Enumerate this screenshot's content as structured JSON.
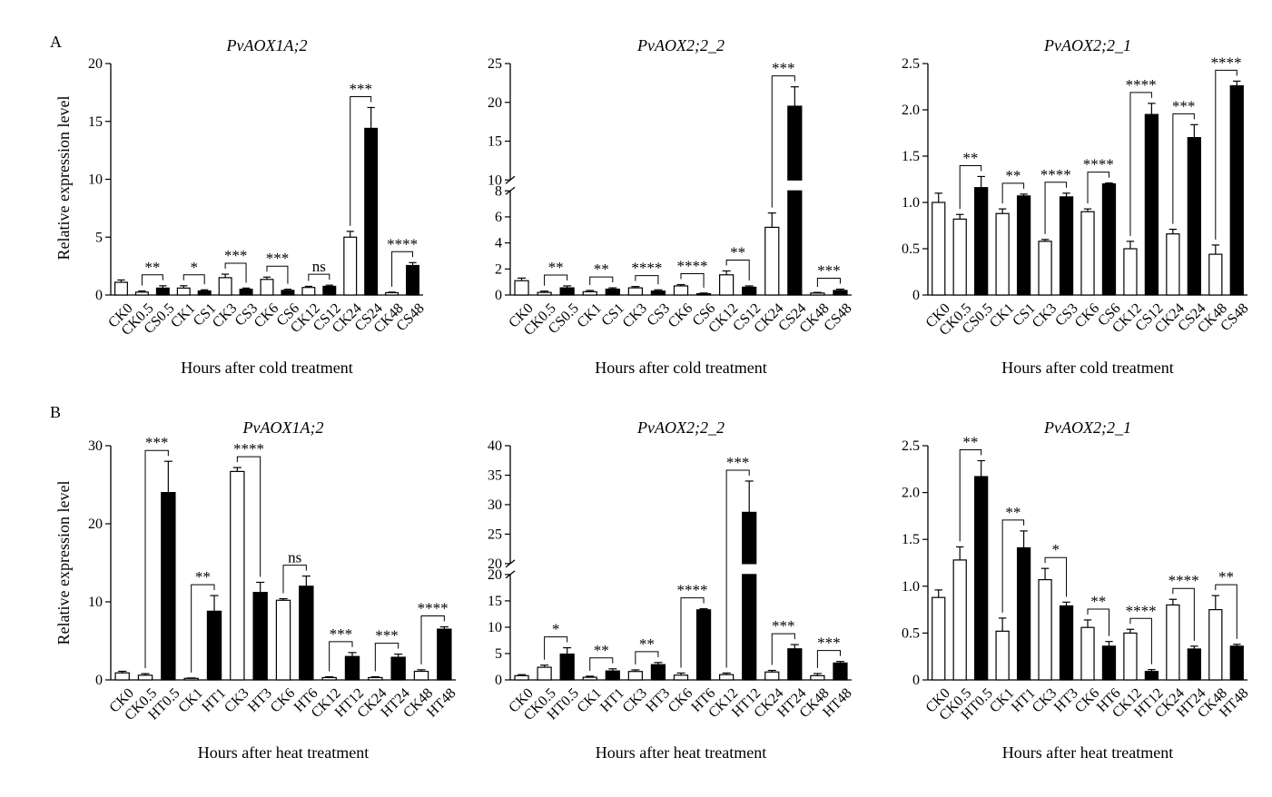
{
  "figure": {
    "panel_labels": [
      "A",
      "B"
    ],
    "ylabel": "Relative expression level",
    "colors": {
      "ck_fill": "#ffffff",
      "treat_fill": "#000000",
      "stroke": "#000000"
    }
  },
  "chart_data": [
    {
      "type": "bar",
      "panel": "A",
      "title": "PvAOX1A;2",
      "xlabel": "Hours after cold treatment",
      "ylabel": "Relative expression level",
      "ylim": [
        0,
        20
      ],
      "yticks": [
        0,
        5,
        10,
        15,
        20
      ],
      "categories": [
        "CK0",
        "CK0.5",
        "CS0.5",
        "CK1",
        "CS1",
        "CK3",
        "CS3",
        "CK6",
        "CS6",
        "CK12",
        "CS12",
        "CK24",
        "CS24",
        "CK48",
        "CS48"
      ],
      "values": [
        1.1,
        0.25,
        0.6,
        0.6,
        0.35,
        1.5,
        0.5,
        1.35,
        0.4,
        0.65,
        0.75,
        5.0,
        14.4,
        0.2,
        2.55
      ],
      "errors": [
        0.2,
        0.1,
        0.2,
        0.2,
        0.1,
        0.3,
        0.1,
        0.2,
        0.1,
        0.1,
        0.1,
        0.5,
        1.8,
        0.05,
        0.25
      ],
      "comparisons": [
        {
          "from": 1,
          "to": 2,
          "label": "**"
        },
        {
          "from": 3,
          "to": 4,
          "label": "*"
        },
        {
          "from": 5,
          "to": 6,
          "label": "***"
        },
        {
          "from": 7,
          "to": 8,
          "label": "***"
        },
        {
          "from": 9,
          "to": 10,
          "label": "ns"
        },
        {
          "from": 11,
          "to": 12,
          "label": "***"
        },
        {
          "from": 13,
          "to": 14,
          "label": "****"
        }
      ]
    },
    {
      "type": "bar",
      "panel": "A",
      "title": "PvAOX2;2_2",
      "xlabel": "Hours after cold treatment",
      "ylabel": "",
      "broken_axis": {
        "lower": [
          0,
          8
        ],
        "upper": [
          10,
          25
        ]
      },
      "yticks_lower": [
        0,
        2,
        4,
        6,
        8
      ],
      "yticks_upper": [
        10,
        15,
        20,
        25
      ],
      "categories": [
        "CK0",
        "CK0.5",
        "CS0.5",
        "CK1",
        "CS1",
        "CK3",
        "CS3",
        "CK6",
        "CS6",
        "CK12",
        "CS12",
        "CK24",
        "CS24",
        "CK48",
        "CS48"
      ],
      "values": [
        1.1,
        0.2,
        0.55,
        0.25,
        0.45,
        0.55,
        0.3,
        0.7,
        0.1,
        1.55,
        0.6,
        5.2,
        19.5,
        0.15,
        0.35
      ],
      "errors": [
        0.2,
        0.1,
        0.15,
        0.1,
        0.1,
        0.1,
        0.1,
        0.1,
        0.05,
        0.3,
        0.1,
        1.1,
        2.5,
        0.05,
        0.1
      ],
      "comparisons": [
        {
          "from": 1,
          "to": 2,
          "label": "**"
        },
        {
          "from": 3,
          "to": 4,
          "label": "**"
        },
        {
          "from": 5,
          "to": 6,
          "label": "****"
        },
        {
          "from": 7,
          "to": 8,
          "label": "****"
        },
        {
          "from": 9,
          "to": 10,
          "label": "**"
        },
        {
          "from": 11,
          "to": 12,
          "label": "***"
        },
        {
          "from": 13,
          "to": 14,
          "label": "***"
        }
      ]
    },
    {
      "type": "bar",
      "panel": "A",
      "title": "PvAOX2;2_1",
      "xlabel": "Hours after cold treatment",
      "ylabel": "",
      "ylim": [
        0,
        2.5
      ],
      "yticks": [
        "0",
        "0.5",
        "1.0",
        "1.5",
        "2.0",
        "2.5"
      ],
      "categories": [
        "CK0",
        "CK0.5",
        "CS0.5",
        "CK1",
        "CS1",
        "CK3",
        "CS3",
        "CK6",
        "CS6",
        "CK12",
        "CS12",
        "CK24",
        "CS24",
        "CK48",
        "CS48"
      ],
      "values": [
        1.0,
        0.82,
        1.16,
        0.88,
        1.07,
        0.58,
        1.06,
        0.9,
        1.2,
        0.5,
        1.95,
        0.66,
        1.7,
        0.44,
        2.26
      ],
      "errors": [
        0.1,
        0.05,
        0.12,
        0.05,
        0.02,
        0.02,
        0.04,
        0.03,
        0.01,
        0.08,
        0.12,
        0.05,
        0.14,
        0.1,
        0.05
      ],
      "comparisons": [
        {
          "from": 1,
          "to": 2,
          "label": "**"
        },
        {
          "from": 3,
          "to": 4,
          "label": "**"
        },
        {
          "from": 5,
          "to": 6,
          "label": "****"
        },
        {
          "from": 7,
          "to": 8,
          "label": "****"
        },
        {
          "from": 9,
          "to": 10,
          "label": "****"
        },
        {
          "from": 11,
          "to": 12,
          "label": "***"
        },
        {
          "from": 13,
          "to": 14,
          "label": "****"
        }
      ]
    },
    {
      "type": "bar",
      "panel": "B",
      "title": "PvAOX1A;2",
      "xlabel": "Hours after heat treatment",
      "ylabel": "Relative expression level",
      "ylim": [
        0,
        30
      ],
      "yticks": [
        0,
        10,
        20,
        30
      ],
      "categories": [
        "CK0",
        "CK0.5",
        "HT0.5",
        "CK1",
        "HT1",
        "CK3",
        "HT3",
        "CK6",
        "HT6",
        "CK12",
        "HT12",
        "CK24",
        "HT24",
        "CK48",
        "HT48"
      ],
      "values": [
        0.9,
        0.6,
        24.0,
        0.2,
        8.8,
        26.7,
        11.2,
        10.2,
        12.0,
        0.3,
        3.0,
        0.3,
        2.9,
        1.1,
        6.5
      ],
      "errors": [
        0.2,
        0.2,
        4.0,
        0.05,
        2.0,
        0.5,
        1.3,
        0.2,
        1.3,
        0.1,
        0.5,
        0.1,
        0.4,
        0.2,
        0.3
      ],
      "comparisons": [
        {
          "from": 1,
          "to": 2,
          "label": "***"
        },
        {
          "from": 3,
          "to": 4,
          "label": "**"
        },
        {
          "from": 5,
          "to": 6,
          "label": "****"
        },
        {
          "from": 7,
          "to": 8,
          "label": "ns"
        },
        {
          "from": 9,
          "to": 10,
          "label": "***"
        },
        {
          "from": 11,
          "to": 12,
          "label": "***"
        },
        {
          "from": 13,
          "to": 14,
          "label": "****"
        }
      ]
    },
    {
      "type": "bar",
      "panel": "B",
      "title": "PvAOX2;2_2",
      "xlabel": "Hours after heat treatment",
      "ylabel": "",
      "broken_axis": {
        "lower": [
          0,
          20
        ],
        "upper": [
          20,
          40
        ]
      },
      "yticks_lower": [
        0,
        5,
        10,
        15,
        20
      ],
      "yticks_upper": [
        20,
        25,
        30,
        35,
        40
      ],
      "categories": [
        "CK0",
        "CK0.5",
        "HT0.5",
        "CK1",
        "HT1",
        "CK3",
        "HT3",
        "CK6",
        "HT6",
        "CK12",
        "HT12",
        "CK24",
        "HT24",
        "CK48",
        "HT48"
      ],
      "values": [
        0.8,
        2.4,
        4.9,
        0.5,
        1.7,
        1.6,
        2.9,
        0.9,
        13.3,
        1.0,
        28.7,
        1.5,
        5.9,
        0.8,
        3.2
      ],
      "errors": [
        0.2,
        0.4,
        1.2,
        0.2,
        0.4,
        0.3,
        0.4,
        0.4,
        0.2,
        0.3,
        5.3,
        0.3,
        0.8,
        0.4,
        0.3
      ],
      "comparisons": [
        {
          "from": 1,
          "to": 2,
          "label": "*"
        },
        {
          "from": 3,
          "to": 4,
          "label": "**"
        },
        {
          "from": 5,
          "to": 6,
          "label": "**"
        },
        {
          "from": 7,
          "to": 8,
          "label": "****"
        },
        {
          "from": 9,
          "to": 10,
          "label": "***"
        },
        {
          "from": 11,
          "to": 12,
          "label": "***"
        },
        {
          "from": 13,
          "to": 14,
          "label": "***"
        }
      ]
    },
    {
      "type": "bar",
      "panel": "B",
      "title": "PvAOX2;2_1",
      "xlabel": "Hours after heat treatment",
      "ylabel": "",
      "ylim": [
        0,
        2.5
      ],
      "yticks": [
        "0",
        "0.5",
        "1.0",
        "1.5",
        "2.0",
        "2.5"
      ],
      "categories": [
        "CK0",
        "CK0.5",
        "HT0.5",
        "CK1",
        "HT1",
        "CK3",
        "HT3",
        "CK6",
        "HT6",
        "CK12",
        "HT12",
        "CK24",
        "HT24",
        "CK48",
        "HT48"
      ],
      "values": [
        0.88,
        1.28,
        2.17,
        0.52,
        1.41,
        1.07,
        0.79,
        0.56,
        0.36,
        0.5,
        0.09,
        0.8,
        0.33,
        0.75,
        0.36
      ],
      "errors": [
        0.08,
        0.14,
        0.17,
        0.14,
        0.18,
        0.12,
        0.04,
        0.08,
        0.05,
        0.04,
        0.02,
        0.06,
        0.03,
        0.15,
        0.02
      ],
      "comparisons": [
        {
          "from": 1,
          "to": 2,
          "label": "**"
        },
        {
          "from": 3,
          "to": 4,
          "label": "**"
        },
        {
          "from": 5,
          "to": 6,
          "label": "*"
        },
        {
          "from": 7,
          "to": 8,
          "label": "**"
        },
        {
          "from": 9,
          "to": 10,
          "label": "****"
        },
        {
          "from": 11,
          "to": 12,
          "label": "****"
        },
        {
          "from": 13,
          "to": 14,
          "label": "**"
        }
      ]
    }
  ]
}
